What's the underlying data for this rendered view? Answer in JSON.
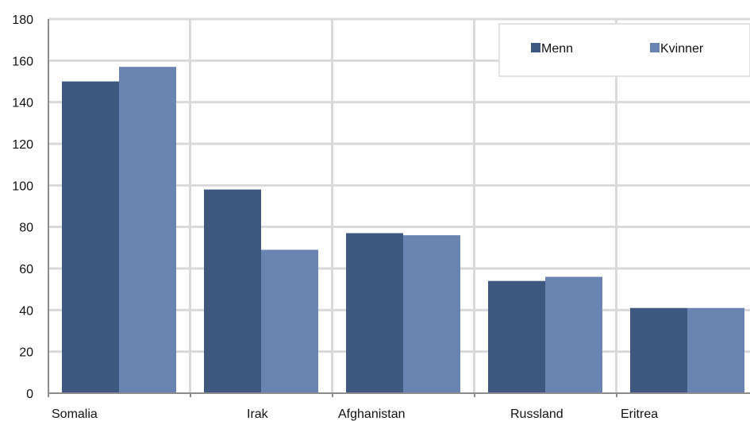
{
  "chart_data": {
    "type": "bar",
    "categories": [
      "Somalia",
      "Irak",
      "Afghanistan",
      "Russland",
      "Eritrea"
    ],
    "series": [
      {
        "name": "Menn",
        "values": [
          150,
          98,
          77,
          54,
          41
        ]
      },
      {
        "name": "Kvinner",
        "values": [
          157,
          69,
          76,
          56,
          41
        ]
      }
    ],
    "title": "",
    "xlabel": "",
    "ylabel": "",
    "ylim": [
      0,
      180
    ],
    "yticks": [
      0,
      20,
      40,
      60,
      80,
      100,
      120,
      140,
      160,
      180
    ],
    "grid": true,
    "legend_position": "top-right",
    "colors": {
      "Menn": "#3f587f",
      "Kvinner": "#6a84b2",
      "grid": "#d9d9d9",
      "axis": "#8c8c8c"
    }
  }
}
